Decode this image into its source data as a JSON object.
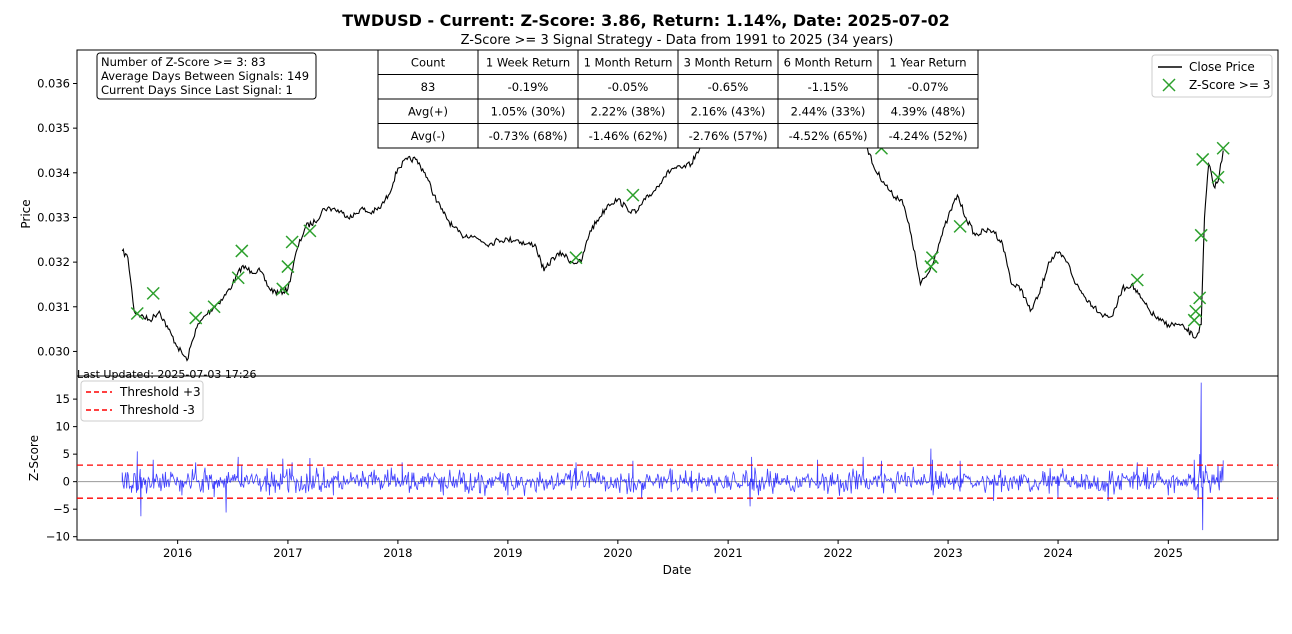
{
  "chart_data": [
    {
      "type": "line",
      "panel": "price",
      "title": "TWDUSD - Current: Z-Score: 3.86, Return: 1.14%, Date: 2025-07-02",
      "subtitle": "Z-Score >= 3 Signal Strategy - Data from 1991 to 2025 (34 years)",
      "ylabel": "Price",
      "xlabel": "",
      "xlim": [
        "2015-02-01",
        "2025-12-31"
      ],
      "ylim": [
        0.02945,
        0.03675
      ],
      "y_ticks": [
        0.03,
        0.031,
        0.032,
        0.033,
        0.034,
        0.035,
        0.036
      ],
      "y_tick_labels": [
        "0.030",
        "0.031",
        "0.032",
        "0.033",
        "0.034",
        "0.035",
        "0.036"
      ],
      "grid": false,
      "legend_position": "top-right",
      "series": [
        {
          "name": "Close Price",
          "color": "#000000",
          "x": [
            "2015-07-01",
            "2015-07-20",
            "2015-08-10",
            "2015-09-01",
            "2015-10-01",
            "2015-11-01",
            "2015-12-01",
            "2016-01-01",
            "2016-02-01",
            "2016-03-01",
            "2016-04-01",
            "2016-05-01",
            "2016-06-01",
            "2016-07-01",
            "2016-08-01",
            "2016-09-01",
            "2016-10-01",
            "2016-11-01",
            "2016-12-01",
            "2017-01-01",
            "2017-02-01",
            "2017-03-01",
            "2017-04-01",
            "2017-05-01",
            "2017-06-01",
            "2017-07-01",
            "2017-08-01",
            "2017-09-01",
            "2017-10-01",
            "2017-11-01",
            "2017-12-01",
            "2018-01-01",
            "2018-02-01",
            "2018-03-01",
            "2018-04-01",
            "2018-05-01",
            "2018-06-01",
            "2018-07-01",
            "2018-08-01",
            "2018-09-01",
            "2018-10-01",
            "2018-11-01",
            "2018-12-01",
            "2019-01-01",
            "2019-02-01",
            "2019-03-01",
            "2019-04-01",
            "2019-05-01",
            "2019-06-01",
            "2019-07-01",
            "2019-08-01",
            "2019-09-01",
            "2019-10-01",
            "2019-11-01",
            "2019-12-01",
            "2020-01-01",
            "2020-02-01",
            "2020-03-01",
            "2020-04-01",
            "2020-05-01",
            "2020-06-01",
            "2020-07-01",
            "2020-08-01",
            "2020-09-01",
            "2020-10-01",
            "2020-11-01",
            "2020-12-01",
            "2021-01-01",
            "2021-02-01",
            "2021-03-01",
            "2021-04-01",
            "2021-05-01",
            "2021-06-01",
            "2021-07-01",
            "2021-08-01",
            "2021-09-01",
            "2021-10-01",
            "2021-11-01",
            "2021-12-01",
            "2022-01-01",
            "2022-02-01",
            "2022-03-01",
            "2022-04-01",
            "2022-05-01",
            "2022-06-01",
            "2022-07-01",
            "2022-08-01",
            "2022-09-01",
            "2022-10-01",
            "2022-11-01",
            "2022-12-01",
            "2023-01-01",
            "2023-02-01",
            "2023-03-01",
            "2023-04-01",
            "2023-05-01",
            "2023-06-01",
            "2023-07-01",
            "2023-08-01",
            "2023-09-01",
            "2023-10-01",
            "2023-11-01",
            "2023-12-01",
            "2024-01-01",
            "2024-02-01",
            "2024-03-01",
            "2024-04-01",
            "2024-05-01",
            "2024-06-01",
            "2024-07-01",
            "2024-08-01",
            "2024-09-01",
            "2024-10-01",
            "2024-11-01",
            "2024-12-01",
            "2025-01-01",
            "2025-02-01",
            "2025-03-01",
            "2025-04-01",
            "2025-04-20",
            "2025-05-01",
            "2025-05-15",
            "2025-06-01",
            "2025-06-15",
            "2025-07-02"
          ],
          "y": [
            0.03225,
            0.0321,
            0.0309,
            0.0308,
            0.0307,
            0.0309,
            0.0305,
            0.0301,
            0.0298,
            0.0305,
            0.0308,
            0.031,
            0.0312,
            0.0315,
            0.0319,
            0.0318,
            0.0318,
            0.0314,
            0.0313,
            0.0314,
            0.0323,
            0.0328,
            0.0329,
            0.0332,
            0.0332,
            0.0331,
            0.033,
            0.0332,
            0.0331,
            0.0332,
            0.0335,
            0.0341,
            0.0343,
            0.0343,
            0.034,
            0.0335,
            0.0331,
            0.0328,
            0.0326,
            0.0326,
            0.0325,
            0.0324,
            0.0325,
            0.0325,
            0.0325,
            0.0324,
            0.0324,
            0.0318,
            0.0321,
            0.0322,
            0.032,
            0.032,
            0.0327,
            0.033,
            0.0333,
            0.0334,
            0.0332,
            0.0331,
            0.0334,
            0.0336,
            0.0339,
            0.0341,
            0.0341,
            0.0342,
            0.0346,
            0.035,
            0.0353,
            0.0356,
            0.0358,
            0.0353,
            0.0354,
            0.036,
            0.0362,
            0.0359,
            0.036,
            0.0359,
            0.036,
            0.0361,
            0.0362,
            0.0361,
            0.0358,
            0.0354,
            0.0347,
            0.0341,
            0.0338,
            0.0335,
            0.0334,
            0.0326,
            0.0315,
            0.0318,
            0.0324,
            0.033,
            0.0335,
            0.033,
            0.0326,
            0.0327,
            0.0327,
            0.0324,
            0.0315,
            0.0314,
            0.0309,
            0.0313,
            0.032,
            0.0322,
            0.032,
            0.0315,
            0.0312,
            0.031,
            0.0308,
            0.0308,
            0.0314,
            0.0315,
            0.0312,
            0.0309,
            0.0307,
            0.0306,
            0.0306,
            0.0305,
            0.0303,
            0.0306,
            0.033,
            0.0342,
            0.0337,
            0.0338,
            0.0345
          ]
        },
        {
          "name": "Z-Score >= 3",
          "color": "#2ca02c",
          "marker": "x",
          "x": [
            "2015-08-20",
            "2015-10-12",
            "2016-03-01",
            "2016-05-01",
            "2016-07-20",
            "2016-08-01",
            "2016-12-15",
            "2017-01-01",
            "2017-01-15",
            "2017-03-15",
            "2019-08-15",
            "2020-02-20",
            "2021-03-20",
            "2021-10-25",
            "2022-03-25",
            "2022-05-25",
            "2022-11-05",
            "2022-11-10",
            "2023-02-10",
            "2024-09-20",
            "2025-03-28",
            "2025-04-02",
            "2025-04-15",
            "2025-04-20",
            "2025-04-25",
            "2025-06-15",
            "2025-07-02"
          ],
          "y": [
            0.03085,
            0.0313,
            0.03075,
            0.031,
            0.03165,
            0.03225,
            0.0314,
            0.0319,
            0.03245,
            0.0327,
            0.0321,
            0.0335,
            0.036,
            0.0362,
            0.03545,
            0.03455,
            0.0319,
            0.0321,
            0.0328,
            0.0316,
            0.0307,
            0.0309,
            0.0312,
            0.0326,
            0.0343,
            0.0339,
            0.03455
          ]
        }
      ]
    },
    {
      "type": "line",
      "panel": "zscore",
      "xlabel": "Date",
      "ylabel": "Z-Score",
      "xlim": [
        "2015-02-01",
        "2025-12-31"
      ],
      "ylim": [
        -10.6,
        19.2
      ],
      "y_ticks": [
        -10,
        -5,
        0,
        5,
        10,
        15
      ],
      "x_ticks": [
        "2016-01-01",
        "2017-01-01",
        "2018-01-01",
        "2019-01-01",
        "2020-01-01",
        "2021-01-01",
        "2022-01-01",
        "2023-01-01",
        "2024-01-01",
        "2025-01-01"
      ],
      "x_tick_labels": [
        "2016",
        "2017",
        "2018",
        "2019",
        "2020",
        "2021",
        "2022",
        "2023",
        "2024",
        "2025"
      ],
      "grid": false,
      "legend_position": "top-left",
      "thresholds": [
        {
          "name": "Threshold +3",
          "value": 3,
          "color": "#ff0000"
        },
        {
          "name": "Threshold -3",
          "value": -3,
          "color": "#ff0000"
        }
      ],
      "baseline": {
        "value": 0,
        "color": "#999999"
      },
      "series": [
        {
          "name": "",
          "color": "#0000ff",
          "x": [
            "2015-07-01",
            "2015-08-01",
            "2015-08-20",
            "2015-09-01",
            "2015-10-12",
            "2016-01-15",
            "2016-03-01",
            "2016-05-01",
            "2016-06-10",
            "2016-07-20",
            "2016-08-01",
            "2016-11-01",
            "2016-12-15",
            "2017-01-15",
            "2017-03-15",
            "2017-06-01",
            "2018-01-15",
            "2018-06-01",
            "2019-01-01",
            "2019-08-15",
            "2020-02-20",
            "2020-03-20",
            "2020-09-01",
            "2021-03-15",
            "2021-03-20",
            "2021-10-25",
            "2022-03-25",
            "2022-05-25",
            "2022-11-05",
            "2022-11-10",
            "2023-02-10",
            "2023-06-01",
            "2024-01-01",
            "2024-06-15",
            "2024-09-20",
            "2025-01-01",
            "2025-03-28",
            "2025-04-10",
            "2025-04-15",
            "2025-04-20",
            "2025-04-25",
            "2025-05-05",
            "2025-06-15",
            "2025-07-02"
          ],
          "y": [
            0.5,
            -2.0,
            5.5,
            -6.3,
            4.0,
            -2.5,
            3.5,
            -2.8,
            -5.6,
            4.5,
            3.0,
            -2.5,
            4.2,
            3.5,
            4.3,
            -2.5,
            3.5,
            -2.5,
            -2.5,
            3.5,
            3.8,
            -3.0,
            2.0,
            -4.5,
            4.5,
            4.0,
            4.5,
            3.8,
            6.0,
            4.0,
            3.8,
            -3.5,
            -3.0,
            -3.5,
            3.5,
            -2.5,
            4.0,
            -3.0,
            5.0,
            18.0,
            -8.8,
            3.0,
            3.2,
            3.86
          ]
        }
      ]
    }
  ],
  "info_box": [
    "Number of Z-Score >= 3: 83",
    "Average Days Between Signals: 149",
    "Current Days Since Last Signal: 1"
  ],
  "stats_table": {
    "header": [
      "Count",
      "1 Week Return",
      "1 Month Return",
      "3 Month Return",
      "6 Month Return",
      "1 Year Return"
    ],
    "rows": [
      [
        "83",
        "-0.19%",
        "-0.05%",
        "-0.65%",
        "-1.15%",
        "-0.07%"
      ],
      [
        "Avg(+)",
        "1.05% (30%)",
        "2.22% (38%)",
        "2.16% (43%)",
        "2.44% (33%)",
        "4.39% (48%)"
      ],
      [
        "Avg(-)",
        "-0.73% (68%)",
        "-1.46% (62%)",
        "-2.76% (57%)",
        "-4.52% (65%)",
        "-4.24% (52%)"
      ]
    ]
  },
  "footer": {
    "last_updated": "Last Updated: 2025-07-03 17:26"
  }
}
